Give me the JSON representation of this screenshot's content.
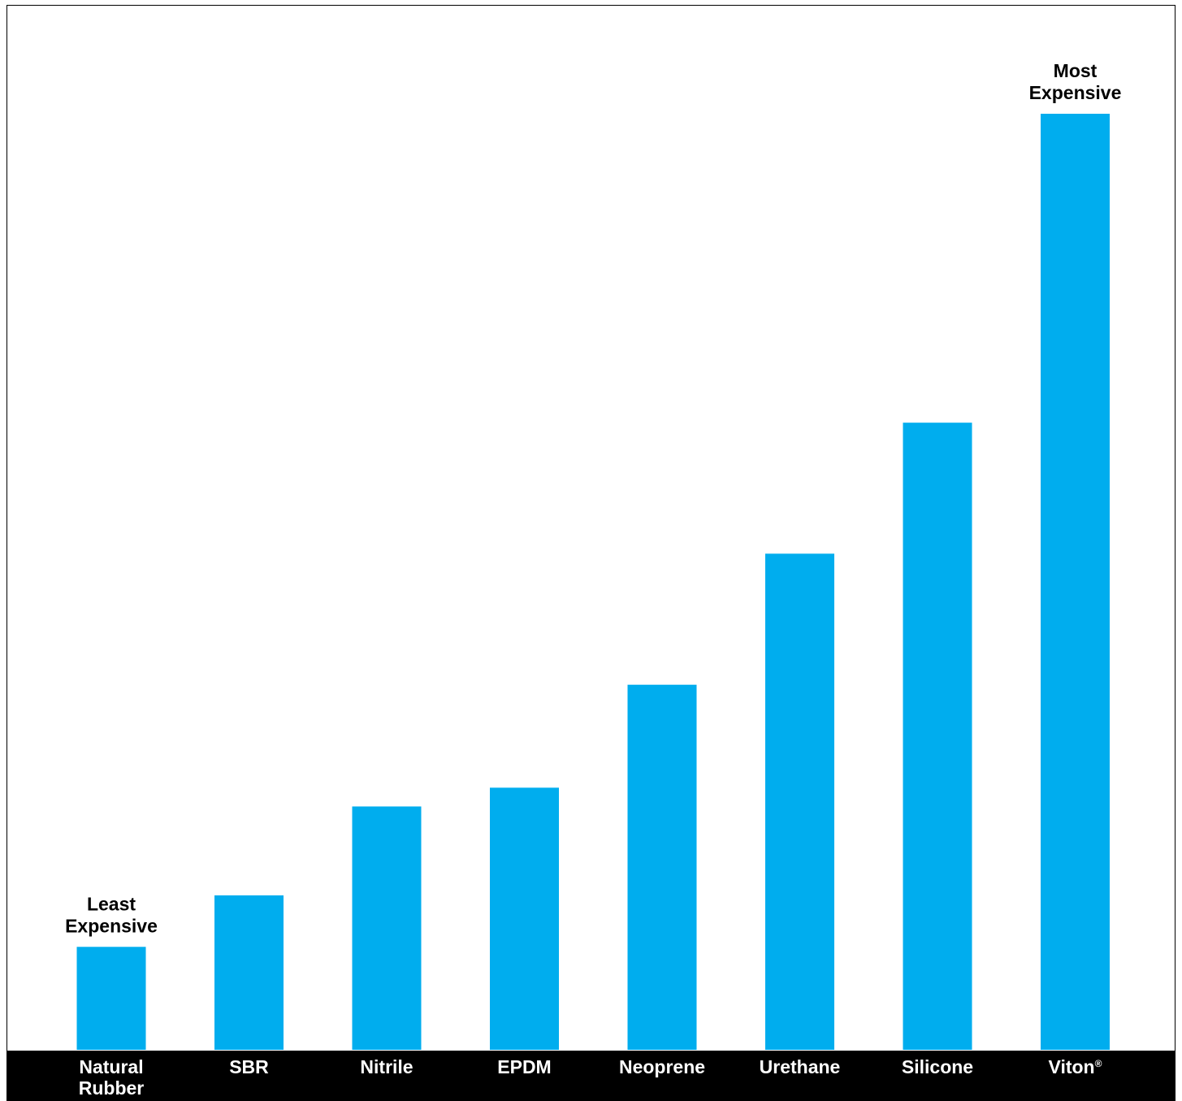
{
  "colors": {
    "bar": "#00adee",
    "axis_band": "#000000",
    "label_text": "#ffffff",
    "annotation_text": "#000000",
    "background": "#ffffff"
  },
  "chart_data": {
    "type": "bar",
    "title": "",
    "xlabel": "",
    "ylabel": "",
    "categories": [
      [
        "Natural",
        "Rubber"
      ],
      [
        "SBR"
      ],
      [
        "Nitrile"
      ],
      [
        "EPDM"
      ],
      [
        "Neoprene"
      ],
      [
        "Urethane"
      ],
      [
        "Silicone"
      ],
      [
        "Viton®"
      ]
    ],
    "values": [
      11,
      16.5,
      26,
      28,
      39,
      53,
      67,
      100
    ],
    "ylim": [
      0,
      100
    ],
    "y_axis_shown": false,
    "grid": false,
    "legend": "none",
    "annotations": [
      {
        "category_index": 0,
        "lines": [
          "Least",
          "Expensive"
        ]
      },
      {
        "category_index": 7,
        "lines": [
          "Most",
          "Expensive"
        ]
      }
    ]
  }
}
